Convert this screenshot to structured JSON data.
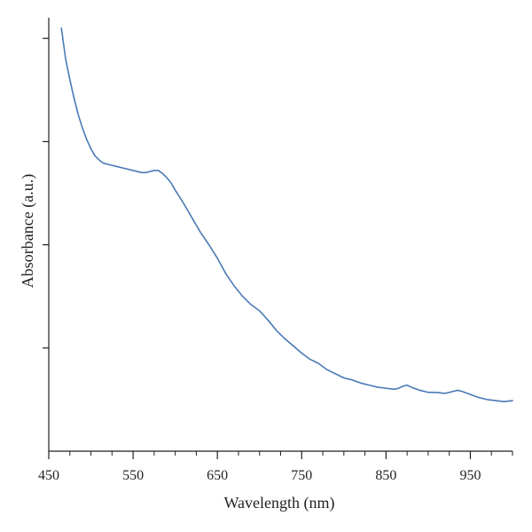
{
  "chart_data": {
    "type": "line",
    "title": "",
    "xlabel": "Wavelength (nm)",
    "ylabel": "Absorbance (a.u.)",
    "xlim": [
      450,
      1000
    ],
    "ylim": [
      0,
      4.2
    ],
    "x_ticks": [
      450,
      550,
      650,
      750,
      850,
      950
    ],
    "x_minor_step": 25,
    "y_ticks": [
      1,
      2,
      3,
      4
    ],
    "y_tick_labels_shown": false,
    "grid": false,
    "legend": "none",
    "line_color": "#4a7ab5",
    "series": [
      {
        "x": [
          465,
          470,
          475,
          480,
          485,
          490,
          495,
          500,
          505,
          510,
          515,
          520,
          530,
          540,
          550,
          560,
          565,
          570,
          575,
          580,
          585,
          590,
          595,
          600,
          610,
          620,
          630,
          640,
          650,
          660,
          670,
          680,
          690,
          700,
          710,
          720,
          730,
          740,
          750,
          760,
          770,
          780,
          790,
          800,
          810,
          820,
          830,
          840,
          850,
          860,
          865,
          870,
          875,
          880,
          890,
          900,
          910,
          920,
          930,
          935,
          940,
          950,
          960,
          970,
          980,
          990,
          1000
        ],
        "y": [
          4.1,
          3.8,
          3.6,
          3.42,
          3.26,
          3.13,
          3.02,
          2.93,
          2.86,
          2.82,
          2.79,
          2.78,
          2.76,
          2.74,
          2.72,
          2.7,
          2.7,
          2.71,
          2.72,
          2.72,
          2.69,
          2.65,
          2.6,
          2.53,
          2.4,
          2.26,
          2.12,
          2.0,
          1.87,
          1.72,
          1.6,
          1.5,
          1.42,
          1.36,
          1.27,
          1.17,
          1.09,
          1.02,
          0.95,
          0.89,
          0.85,
          0.79,
          0.75,
          0.71,
          0.69,
          0.66,
          0.64,
          0.62,
          0.61,
          0.6,
          0.61,
          0.63,
          0.64,
          0.62,
          0.59,
          0.57,
          0.57,
          0.56,
          0.58,
          0.59,
          0.58,
          0.55,
          0.52,
          0.5,
          0.49,
          0.48,
          0.49
        ]
      }
    ]
  }
}
